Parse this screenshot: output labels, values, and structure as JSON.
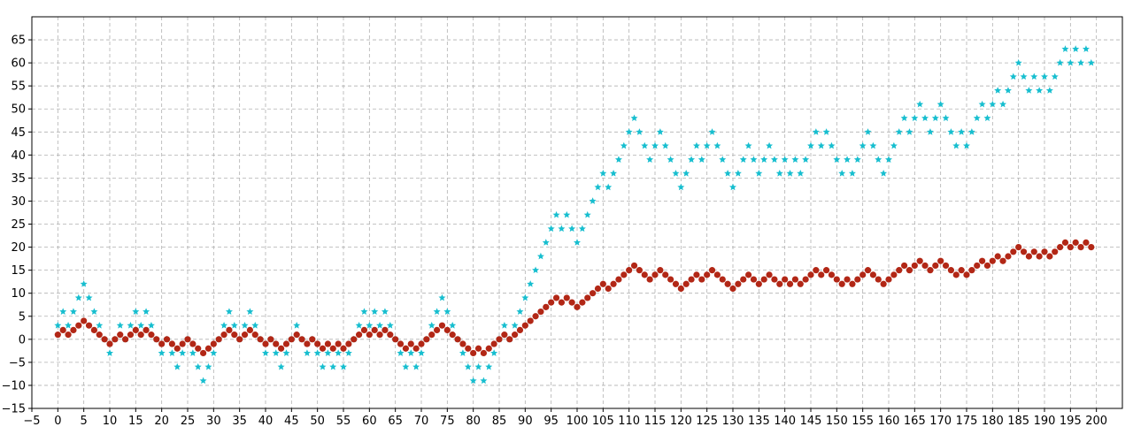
{
  "chart_data": {
    "type": "scatter",
    "title": "",
    "xlabel": "",
    "ylabel": "",
    "xlim": [
      -5,
      205
    ],
    "ylim": [
      -15,
      70
    ],
    "xticks": [
      -5,
      0,
      5,
      10,
      15,
      20,
      25,
      30,
      35,
      40,
      45,
      50,
      55,
      60,
      65,
      70,
      75,
      80,
      85,
      90,
      95,
      100,
      105,
      110,
      115,
      120,
      125,
      130,
      135,
      140,
      145,
      150,
      155,
      160,
      165,
      170,
      175,
      180,
      185,
      190,
      195,
      200
    ],
    "yticks": [
      -15,
      -10,
      -5,
      0,
      5,
      10,
      15,
      20,
      25,
      30,
      35,
      40,
      45,
      50,
      55,
      60,
      65
    ],
    "grid": true,
    "legend": "none",
    "x_start": 0,
    "x_step": 1,
    "series": [
      {
        "marker": "star",
        "color": "#17becf",
        "values": [
          3,
          6,
          3,
          6,
          9,
          12,
          9,
          6,
          3,
          0,
          -3,
          0,
          3,
          0,
          3,
          6,
          3,
          6,
          3,
          0,
          -3,
          0,
          -3,
          -6,
          -3,
          0,
          -3,
          -6,
          -9,
          -6,
          -3,
          0,
          3,
          6,
          3,
          0,
          3,
          6,
          3,
          0,
          -3,
          0,
          -3,
          -6,
          -3,
          0,
          3,
          0,
          -3,
          0,
          -3,
          -6,
          -3,
          -6,
          -3,
          -6,
          -3,
          0,
          3,
          6,
          3,
          6,
          3,
          6,
          3,
          0,
          -3,
          -6,
          -3,
          -6,
          -3,
          0,
          3,
          6,
          9,
          6,
          3,
          0,
          -3,
          -6,
          -9,
          -6,
          -9,
          -6,
          -3,
          0,
          3,
          0,
          3,
          6,
          9,
          12,
          15,
          18,
          21,
          24,
          27,
          24,
          27,
          24,
          21,
          24,
          27,
          30,
          33,
          36,
          33,
          36,
          39,
          42,
          45,
          48,
          45,
          42,
          39,
          42,
          45,
          42,
          39,
          36,
          33,
          36,
          39,
          42,
          39,
          42,
          45,
          42,
          39,
          36,
          33,
          36,
          39,
          42,
          39,
          36,
          39,
          42,
          39,
          36,
          39,
          36,
          39,
          36,
          39,
          42,
          45,
          42,
          45,
          42,
          39,
          36,
          39,
          36,
          39,
          42,
          45,
          42,
          39,
          36,
          39,
          42,
          45,
          48,
          45,
          48,
          51,
          48,
          45,
          48,
          51,
          48,
          45,
          42,
          45,
          42,
          45,
          48,
          51,
          48,
          51,
          54,
          51,
          54,
          57,
          60,
          57,
          54,
          57,
          54,
          57,
          54,
          57,
          60,
          63,
          60,
          63,
          60,
          63,
          60
        ]
      },
      {
        "marker": "circle",
        "color": "#b22716",
        "values": [
          1,
          2,
          1,
          2,
          3,
          4,
          3,
          2,
          1,
          0,
          -1,
          0,
          1,
          0,
          1,
          2,
          1,
          2,
          1,
          0,
          -1,
          0,
          -1,
          -2,
          -1,
          0,
          -1,
          -2,
          -3,
          -2,
          -1,
          0,
          1,
          2,
          1,
          0,
          1,
          2,
          1,
          0,
          -1,
          0,
          -1,
          -2,
          -1,
          0,
          1,
          0,
          -1,
          0,
          -1,
          -2,
          -1,
          -2,
          -1,
          -2,
          -1,
          0,
          1,
          2,
          1,
          2,
          1,
          2,
          1,
          0,
          -1,
          -2,
          -1,
          -2,
          -1,
          0,
          1,
          2,
          3,
          2,
          1,
          0,
          -1,
          -2,
          -3,
          -2,
          -3,
          -2,
          -1,
          0,
          1,
          0,
          1,
          2,
          3,
          4,
          5,
          6,
          7,
          8,
          9,
          8,
          9,
          8,
          7,
          8,
          9,
          10,
          11,
          12,
          11,
          12,
          13,
          14,
          15,
          16,
          15,
          14,
          13,
          14,
          15,
          14,
          13,
          12,
          11,
          12,
          13,
          14,
          13,
          14,
          15,
          14,
          13,
          12,
          11,
          12,
          13,
          14,
          13,
          12,
          13,
          14,
          13,
          12,
          13,
          12,
          13,
          12,
          13,
          14,
          15,
          14,
          15,
          14,
          13,
          12,
          13,
          12,
          13,
          14,
          15,
          14,
          13,
          12,
          13,
          14,
          15,
          16,
          15,
          16,
          17,
          16,
          15,
          16,
          17,
          16,
          15,
          14,
          15,
          14,
          15,
          16,
          17,
          16,
          17,
          18,
          17,
          18,
          19,
          20,
          19,
          18,
          19,
          18,
          19,
          18,
          19,
          20,
          21,
          20,
          21,
          20,
          21,
          20
        ]
      }
    ]
  }
}
